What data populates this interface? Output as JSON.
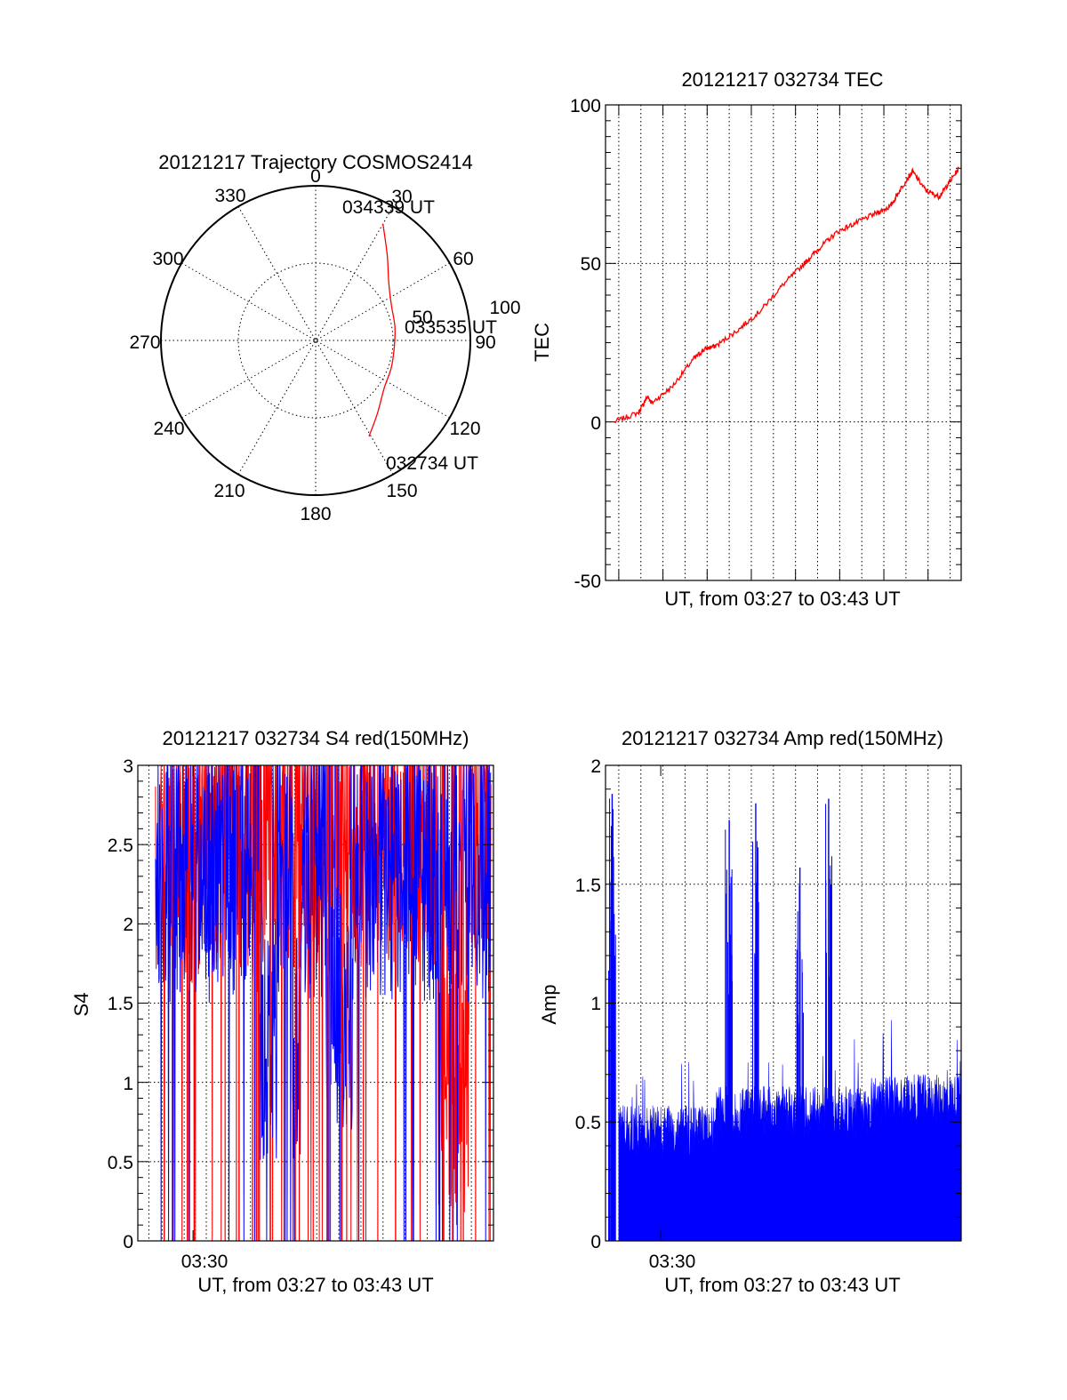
{
  "colors": {
    "red": "#ff0000",
    "blue": "#0000ff",
    "axis": "#000000"
  },
  "chart_data": [
    {
      "type": "polar",
      "title": "20121217 Trajectory COSMOS2414",
      "angle_ticks": [
        "0",
        "30",
        "60",
        "90",
        "120",
        "150",
        "180",
        "210",
        "240",
        "270",
        "300",
        "330"
      ],
      "radial_ticks": [
        "50",
        "100"
      ],
      "radial_range": [
        0,
        100
      ],
      "grid": true,
      "series": [
        {
          "color": "#ff0000",
          "points": [
            {
              "az": 151,
              "r": 71
            },
            {
              "az": 140,
              "r": 62
            },
            {
              "az": 125,
              "r": 54
            },
            {
              "az": 110,
              "r": 52
            },
            {
              "az": 95,
              "r": 51
            },
            {
              "az": 80,
              "r": 52
            },
            {
              "az": 65,
              "r": 54
            },
            {
              "az": 52,
              "r": 60
            },
            {
              "az": 40,
              "r": 72
            },
            {
              "az": 30,
              "r": 87
            }
          ]
        }
      ],
      "annotations": [
        "034339 UT",
        "033535 UT",
        "032734 UT"
      ]
    },
    {
      "type": "line",
      "title": "20121217 032734 TEC",
      "xlabel": "UT, from 03:27 to 03:43 UT",
      "ylabel": "TEC",
      "xlim": [
        0,
        16.1
      ],
      "ylim": [
        -50,
        100
      ],
      "yticks": [
        "100",
        "50",
        "0",
        "-50"
      ],
      "grid": true,
      "series": [
        {
          "color": "#ff0000",
          "x": [
            0.4,
            1.5,
            1.9,
            2.1,
            3.0,
            4.0,
            4.5,
            5.0,
            6.0,
            7.0,
            8.0,
            9.0,
            9.7,
            10.5,
            11.4,
            12.3,
            12.9,
            13.4,
            13.9,
            14.5,
            15.1,
            15.5,
            16.0
          ],
          "y": [
            0,
            3,
            8,
            6,
            11,
            20,
            23,
            24,
            29,
            35,
            43,
            50,
            55,
            60,
            63,
            66,
            68,
            74,
            79,
            73,
            71,
            75,
            80
          ]
        }
      ]
    },
    {
      "type": "line",
      "title": "20121217 032734 S4 red(150MHz)",
      "xlabel": "UT, from 03:27 to 03:43 UT",
      "ylabel": "S4",
      "xlim": [
        0,
        16.1
      ],
      "ylim": [
        0,
        3
      ],
      "xticks": [
        {
          "x": 2.5,
          "label": "03:30"
        }
      ],
      "yticks": [
        "3",
        "2.5",
        "2",
        "1.5",
        "1",
        "0.5",
        "0"
      ],
      "grid": true,
      "series": [
        {
          "color": "#ff0000",
          "note": "dense scintillation trace, saturated at 3 early, dips near 0.4-0.8 around 14-15"
        },
        {
          "color": "#0000ff",
          "note": "dense scintillation trace, 1.5-3 mostly, dips to ~0.7-1.0 near 6-10"
        }
      ]
    },
    {
      "type": "line",
      "title": "20121217 032734 Amp red(150MHz)",
      "xlabel": "UT, from 03:27 to 03:43 UT",
      "ylabel": "Amp",
      "xlim": [
        0,
        16.1
      ],
      "ylim": [
        0,
        2
      ],
      "xticks": [
        {
          "x": 2.5,
          "label": "03:30"
        }
      ],
      "yticks": [
        "2",
        "1.5",
        "1",
        "0.5",
        "0"
      ],
      "grid": true,
      "series": [
        {
          "color": "#0000ff",
          "baseline": 0.35,
          "spikes": [
            {
              "x": 0.3,
              "y": 1.88
            },
            {
              "x": 5.6,
              "y": 1.77
            },
            {
              "x": 6.8,
              "y": 1.84
            },
            {
              "x": 8.8,
              "y": 1.57
            },
            {
              "x": 10.1,
              "y": 1.86
            }
          ]
        }
      ]
    }
  ]
}
